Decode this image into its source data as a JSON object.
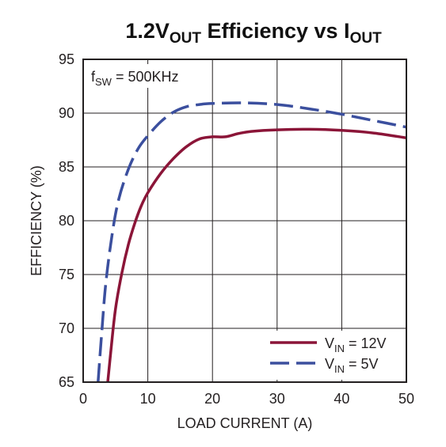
{
  "chart_data": {
    "type": "line",
    "title": {
      "prefix": "1.2V",
      "prefix_sub": "OUT",
      "middle": " Efficiency vs I",
      "middle_sub": "OUT"
    },
    "xlabel": "LOAD CURRENT (A)",
    "ylabel": "EFFICIENCY (%)",
    "xlim": [
      0,
      50
    ],
    "ylim": [
      65,
      95
    ],
    "xticks": [
      "0",
      "10",
      "20",
      "30",
      "40",
      "50"
    ],
    "yticks": [
      "65",
      "70",
      "75",
      "80",
      "85",
      "90",
      "95"
    ],
    "grid": true,
    "annotation": {
      "main": "f",
      "sub": "SW",
      "rest": " = 500KHz"
    },
    "legend_position": "bottom-right",
    "series": [
      {
        "name": "V_IN = 12V",
        "legend_main": "V",
        "legend_sub": "IN",
        "legend_rest": " = 12V",
        "color": "#8b1538",
        "dash": "solid",
        "x": [
          3.8,
          4.3,
          5,
          6,
          7,
          8,
          9,
          10,
          12,
          14,
          16,
          18,
          20,
          22,
          24,
          26,
          30,
          35,
          40,
          45,
          50
        ],
        "y": [
          65,
          68,
          71.8,
          75.2,
          77.8,
          79.8,
          81.4,
          82.6,
          84.4,
          85.8,
          86.9,
          87.6,
          87.8,
          87.8,
          88.1,
          88.3,
          88.45,
          88.5,
          88.4,
          88.15,
          87.7
        ]
      },
      {
        "name": "V_IN = 5V",
        "legend_main": "V",
        "legend_sub": "IN",
        "legend_rest": " = 5V",
        "color": "#3b4f9e",
        "dash": "dashed",
        "x": [
          2.3,
          2.8,
          3.5,
          4.5,
          5.5,
          7,
          8.5,
          10,
          12,
          14,
          16,
          18,
          20,
          25,
          30,
          35,
          40,
          45,
          50
        ],
        "y": [
          65,
          69,
          74.2,
          78.8,
          82,
          84.8,
          86.7,
          87.9,
          89.2,
          90.1,
          90.6,
          90.8,
          90.9,
          90.95,
          90.8,
          90.4,
          89.9,
          89.3,
          88.7
        ]
      }
    ]
  }
}
